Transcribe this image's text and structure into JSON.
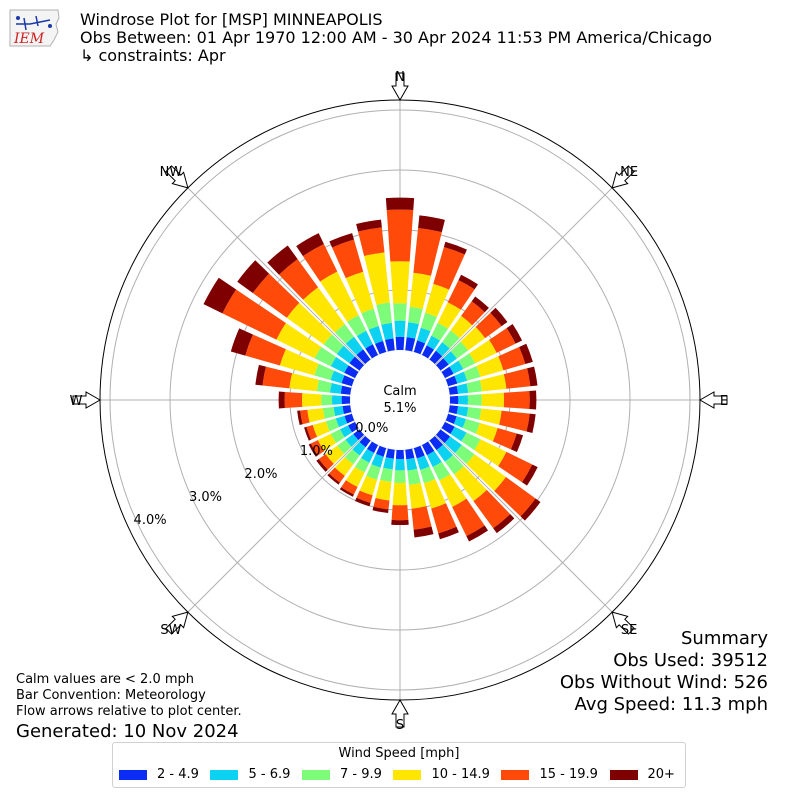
{
  "header": {
    "title_line1": "Windrose Plot for [MSP] MINNEAPOLIS",
    "title_line2": "Obs Between: 01 Apr 1970 12:00 AM - 30 Apr 2024 11:53 PM America/Chicago",
    "title_line3": "↳ constraints: Apr"
  },
  "logo": {
    "text": "IEM",
    "icon": "iem-iowa-logo-icon"
  },
  "summary": {
    "heading": "Summary",
    "obs_used": "Obs Used: 39512",
    "obs_without_wind": "Obs Without Wind: 526",
    "avg_speed": "Avg Speed: 11.3 mph"
  },
  "notes": {
    "calm_note": "Calm values are < 2.0 mph",
    "bar_convention": "Bar Convention: Meteorology",
    "flow_arrows": "Flow arrows relative to plot center.",
    "generated": "Generated: 10 Nov 2024"
  },
  "legend": {
    "title": "Wind Speed [mph]",
    "items": [
      {
        "label": "2 - 4.9",
        "color": "#0a2cf5"
      },
      {
        "label": "5 - 6.9",
        "color": "#0ad2f0"
      },
      {
        "label": "7 - 9.9",
        "color": "#7dfc7a"
      },
      {
        "label": "10 - 14.9",
        "color": "#ffe600"
      },
      {
        "label": "15 - 19.9",
        "color": "#ff4a0a"
      },
      {
        "label": "20+",
        "color": "#7f0000"
      }
    ]
  },
  "chart_data": {
    "type": "windrose",
    "calm_label": "Calm",
    "calm_value": "5.1%",
    "calm_percent": 5.1,
    "radial_ticks": [
      "0.0%",
      "1.0%",
      "2.0%",
      "3.0%",
      "4.0%"
    ],
    "radial_tick_values": [
      0,
      1,
      2,
      3,
      4
    ],
    "compass_labels": [
      "N",
      "NE",
      "E",
      "SE",
      "S",
      "SW",
      "W",
      "NW"
    ],
    "direction_count": 36,
    "bins": [
      "2 - 4.9",
      "5 - 6.9",
      "7 - 9.9",
      "10 - 14.9",
      "15 - 19.9",
      "20+"
    ],
    "cumulative": [
      [
        0.22,
        0.49,
        0.78,
        1.48,
        2.34,
        2.54
      ],
      [
        0.22,
        0.47,
        0.73,
        1.3,
        2.05,
        2.26
      ],
      [
        0.2,
        0.42,
        0.68,
        1.18,
        1.82,
        1.91
      ],
      [
        0.18,
        0.36,
        0.6,
        0.98,
        1.39,
        1.49
      ],
      [
        0.18,
        0.36,
        0.6,
        0.9,
        1.2,
        1.3
      ],
      [
        0.17,
        0.34,
        0.57,
        0.92,
        1.26,
        1.38
      ],
      [
        0.16,
        0.34,
        0.56,
        0.96,
        1.31,
        1.43
      ],
      [
        0.16,
        0.33,
        0.56,
        0.96,
        1.34,
        1.47
      ],
      [
        0.14,
        0.31,
        0.54,
        0.95,
        1.35,
        1.47
      ],
      [
        0.14,
        0.3,
        0.53,
        0.9,
        1.33,
        1.44
      ],
      [
        0.14,
        0.31,
        0.53,
        0.87,
        1.34,
        1.44
      ],
      [
        0.15,
        0.31,
        0.55,
        0.86,
        1.19,
        1.3
      ],
      [
        0.18,
        0.4,
        0.66,
        1.14,
        1.62,
        1.72
      ],
      [
        0.2,
        0.44,
        0.7,
        1.35,
        1.96,
        2.06
      ],
      [
        0.2,
        0.44,
        0.7,
        1.25,
        1.81,
        1.91
      ],
      [
        0.19,
        0.41,
        0.66,
        1.15,
        1.69,
        1.79
      ],
      [
        0.18,
        0.38,
        0.61,
        1.05,
        1.48,
        1.58
      ],
      [
        0.16,
        0.35,
        0.59,
        0.99,
        1.34,
        1.47
      ],
      [
        0.15,
        0.34,
        0.55,
        0.92,
        1.17,
        1.25
      ],
      [
        0.15,
        0.33,
        0.54,
        0.85,
        1.0,
        1.06
      ],
      [
        0.15,
        0.34,
        0.55,
        0.82,
        0.95,
        1.01
      ],
      [
        0.15,
        0.33,
        0.51,
        0.78,
        0.92,
        0.96
      ],
      [
        0.14,
        0.31,
        0.49,
        0.73,
        0.87,
        0.91
      ],
      [
        0.13,
        0.29,
        0.46,
        0.7,
        0.84,
        0.89
      ],
      [
        0.13,
        0.28,
        0.45,
        0.69,
        0.82,
        0.86
      ],
      [
        0.13,
        0.28,
        0.45,
        0.68,
        0.79,
        0.83
      ],
      [
        0.13,
        0.28,
        0.46,
        0.72,
        0.84,
        0.89
      ],
      [
        0.14,
        0.3,
        0.48,
        0.8,
        1.09,
        1.19
      ],
      [
        0.16,
        0.34,
        0.56,
        1.02,
        1.47,
        1.59
      ],
      [
        0.18,
        0.37,
        0.65,
        1.25,
        1.85,
        2.1
      ],
      [
        0.2,
        0.45,
        0.75,
        1.46,
        2.46,
        2.81
      ],
      [
        0.21,
        0.47,
        0.74,
        1.5,
        2.2,
        2.52
      ],
      [
        0.21,
        0.47,
        0.73,
        1.49,
        2.07,
        2.35
      ],
      [
        0.2,
        0.45,
        0.74,
        1.55,
        2.06,
        2.26
      ],
      [
        0.19,
        0.45,
        0.75,
        1.39,
        1.95,
        2.06
      ],
      [
        0.2,
        0.46,
        0.8,
        1.64,
        2.06,
        2.19
      ]
    ]
  }
}
